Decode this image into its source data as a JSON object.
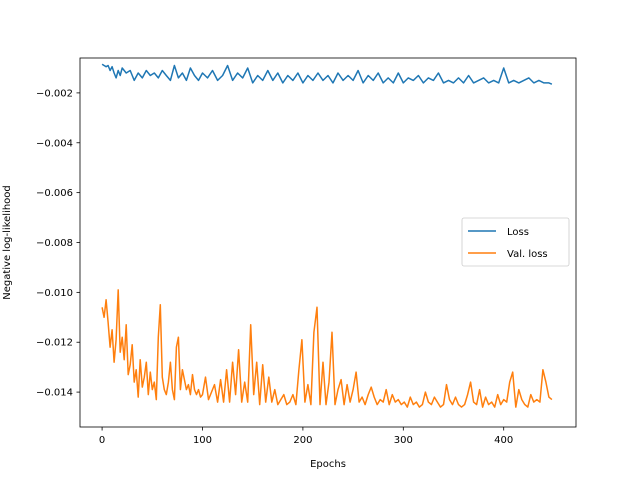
{
  "chart_data": {
    "type": "line",
    "title": "",
    "xlabel": "Epochs",
    "ylabel": "Negative log-likelihood",
    "xlim": [
      -22,
      472
    ],
    "ylim": [
      -0.0154,
      -0.0006
    ],
    "xticks": [
      0,
      100,
      200,
      300,
      400
    ],
    "xtick_labels": [
      "0",
      "100",
      "200",
      "300",
      "400"
    ],
    "yticks": [
      -0.014,
      -0.012,
      -0.01,
      -0.008,
      -0.006,
      -0.004,
      -0.002
    ],
    "ytick_labels": [
      "−0.014",
      "−0.012",
      "−0.010",
      "−0.008",
      "−0.006",
      "−0.004",
      "−0.002"
    ],
    "grid": false,
    "legend_position": "center-right",
    "series": [
      {
        "name": "Loss",
        "color": "#1f77b4",
        "x": [
          0,
          2,
          4,
          6,
          8,
          10,
          12,
          14,
          16,
          18,
          20,
          24,
          28,
          32,
          36,
          40,
          44,
          48,
          52,
          56,
          60,
          64,
          68,
          72,
          76,
          80,
          84,
          88,
          92,
          96,
          100,
          105,
          110,
          115,
          120,
          125,
          130,
          135,
          140,
          145,
          150,
          155,
          160,
          165,
          170,
          175,
          180,
          185,
          190,
          195,
          200,
          205,
          210,
          215,
          220,
          225,
          230,
          235,
          240,
          245,
          250,
          255,
          260,
          265,
          270,
          275,
          280,
          285,
          290,
          295,
          300,
          305,
          310,
          315,
          320,
          325,
          330,
          335,
          340,
          345,
          350,
          355,
          360,
          365,
          370,
          375,
          380,
          385,
          390,
          395,
          400,
          405,
          410,
          415,
          420,
          425,
          430,
          435,
          440,
          445,
          448
        ],
        "y": [
          -0.00085,
          -0.0009,
          -0.00095,
          -0.0009,
          -0.0011,
          -0.00095,
          -0.0012,
          -0.0014,
          -0.0011,
          -0.0013,
          -0.001,
          -0.0012,
          -0.0011,
          -0.0015,
          -0.0012,
          -0.0014,
          -0.0011,
          -0.0013,
          -0.0012,
          -0.0014,
          -0.0011,
          -0.0013,
          -0.0015,
          -0.0009,
          -0.0014,
          -0.0012,
          -0.0015,
          -0.001,
          -0.0013,
          -0.0015,
          -0.0012,
          -0.0014,
          -0.0011,
          -0.0015,
          -0.0013,
          -0.0009,
          -0.0015,
          -0.0012,
          -0.0014,
          -0.001,
          -0.0016,
          -0.0013,
          -0.0015,
          -0.0011,
          -0.0015,
          -0.0012,
          -0.0016,
          -0.0013,
          -0.0015,
          -0.0012,
          -0.0016,
          -0.0013,
          -0.0015,
          -0.0012,
          -0.0015,
          -0.0013,
          -0.0016,
          -0.0012,
          -0.0015,
          -0.0013,
          -0.0015,
          -0.0011,
          -0.0016,
          -0.0013,
          -0.0015,
          -0.0012,
          -0.0016,
          -0.0014,
          -0.0016,
          -0.0012,
          -0.0016,
          -0.0014,
          -0.0015,
          -0.0013,
          -0.0016,
          -0.0014,
          -0.0015,
          -0.0012,
          -0.0016,
          -0.0015,
          -0.0016,
          -0.0014,
          -0.0016,
          -0.0013,
          -0.0016,
          -0.0015,
          -0.0014,
          -0.0016,
          -0.0015,
          -0.0016,
          -0.001,
          -0.0016,
          -0.0015,
          -0.0016,
          -0.0015,
          -0.0014,
          -0.0016,
          -0.0015,
          -0.0016,
          -0.0016,
          -0.00165
        ]
      },
      {
        "name": "Val. loss",
        "color": "#ff7f0e",
        "x": [
          0,
          2,
          4,
          6,
          8,
          10,
          12,
          14,
          16,
          18,
          20,
          22,
          24,
          26,
          28,
          30,
          32,
          34,
          36,
          38,
          40,
          42,
          44,
          46,
          48,
          50,
          52,
          54,
          56,
          58,
          60,
          62,
          64,
          66,
          68,
          70,
          72,
          74,
          76,
          78,
          80,
          82,
          84,
          86,
          88,
          90,
          92,
          94,
          96,
          98,
          100,
          103,
          106,
          109,
          112,
          115,
          118,
          121,
          124,
          127,
          130,
          133,
          136,
          139,
          142,
          145,
          148,
          151,
          154,
          157,
          160,
          163,
          166,
          169,
          172,
          175,
          178,
          181,
          184,
          187,
          190,
          193,
          196,
          199,
          202,
          205,
          208,
          211,
          214,
          217,
          220,
          223,
          226,
          229,
          232,
          235,
          238,
          241,
          244,
          247,
          250,
          253,
          256,
          259,
          262,
          265,
          268,
          271,
          274,
          277,
          280,
          283,
          286,
          289,
          292,
          295,
          298,
          301,
          304,
          307,
          310,
          313,
          316,
          319,
          322,
          325,
          328,
          331,
          334,
          337,
          340,
          343,
          346,
          349,
          352,
          355,
          358,
          361,
          364,
          367,
          370,
          373,
          376,
          379,
          382,
          385,
          388,
          391,
          394,
          397,
          400,
          403,
          406,
          409,
          412,
          415,
          418,
          421,
          424,
          427,
          430,
          433,
          436,
          439,
          442,
          445,
          448
        ],
        "y": [
          -0.0106,
          -0.011,
          -0.0103,
          -0.0112,
          -0.0122,
          -0.0115,
          -0.0128,
          -0.0119,
          -0.0099,
          -0.0124,
          -0.0118,
          -0.0127,
          -0.0113,
          -0.0133,
          -0.0129,
          -0.0121,
          -0.0136,
          -0.0131,
          -0.0142,
          -0.0127,
          -0.0138,
          -0.0134,
          -0.0128,
          -0.0141,
          -0.0132,
          -0.0139,
          -0.0136,
          -0.0143,
          -0.0118,
          -0.0105,
          -0.0134,
          -0.0139,
          -0.0141,
          -0.0136,
          -0.0128,
          -0.0139,
          -0.0143,
          -0.0122,
          -0.0118,
          -0.0139,
          -0.0131,
          -0.0135,
          -0.0139,
          -0.0137,
          -0.0141,
          -0.0133,
          -0.0139,
          -0.0141,
          -0.0139,
          -0.0142,
          -0.0141,
          -0.0134,
          -0.0143,
          -0.014,
          -0.0137,
          -0.0144,
          -0.0135,
          -0.0144,
          -0.0131,
          -0.0144,
          -0.0128,
          -0.0141,
          -0.0123,
          -0.0144,
          -0.0136,
          -0.0144,
          -0.0113,
          -0.0141,
          -0.0128,
          -0.0145,
          -0.0129,
          -0.0144,
          -0.0134,
          -0.0144,
          -0.0139,
          -0.0145,
          -0.0143,
          -0.0141,
          -0.0145,
          -0.0144,
          -0.0141,
          -0.0145,
          -0.0131,
          -0.0119,
          -0.0144,
          -0.0137,
          -0.0145,
          -0.0116,
          -0.0106,
          -0.0145,
          -0.0128,
          -0.0145,
          -0.0136,
          -0.0116,
          -0.0145,
          -0.0139,
          -0.0135,
          -0.0145,
          -0.0137,
          -0.0144,
          -0.0139,
          -0.0132,
          -0.0144,
          -0.0142,
          -0.0145,
          -0.0141,
          -0.0138,
          -0.0142,
          -0.0145,
          -0.0143,
          -0.0144,
          -0.0139,
          -0.0145,
          -0.0141,
          -0.0144,
          -0.0143,
          -0.0145,
          -0.0144,
          -0.0146,
          -0.0142,
          -0.0145,
          -0.0144,
          -0.0146,
          -0.0145,
          -0.014,
          -0.0144,
          -0.0145,
          -0.0142,
          -0.0144,
          -0.0146,
          -0.0145,
          -0.0137,
          -0.0143,
          -0.0145,
          -0.0142,
          -0.0145,
          -0.0146,
          -0.0145,
          -0.0141,
          -0.0136,
          -0.0144,
          -0.0145,
          -0.0139,
          -0.0146,
          -0.0142,
          -0.0145,
          -0.0144,
          -0.0146,
          -0.0141,
          -0.0145,
          -0.0143,
          -0.0144,
          -0.0136,
          -0.0132,
          -0.0146,
          -0.0139,
          -0.0143,
          -0.0145,
          -0.0146,
          -0.0141,
          -0.0144,
          -0.0143,
          -0.0144,
          -0.0131,
          -0.0136,
          -0.0142,
          -0.0143
        ]
      }
    ]
  }
}
